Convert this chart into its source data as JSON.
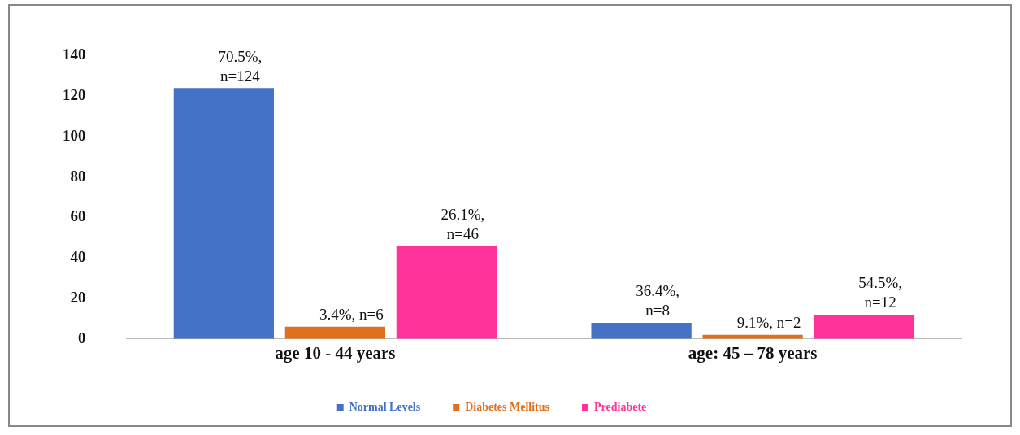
{
  "chart_data": {
    "type": "bar",
    "categories": [
      "age 10 - 44 years",
      "age: 45 – 78 years"
    ],
    "series": [
      {
        "name": "Normal Levels",
        "color": "#4472c4",
        "values": [
          124,
          8
        ],
        "value_labels": [
          "70.5%, n=124",
          "36.4%, n=8"
        ]
      },
      {
        "name": "Diabetes Mellitus",
        "color": "#e0701e",
        "values": [
          6,
          2
        ],
        "value_labels": [
          "3.4%, n=6",
          "9.1%, n=2"
        ]
      },
      {
        "name": "Prediabete",
        "color": "#ff3399",
        "values": [
          46,
          12
        ],
        "value_labels": [
          "26.1%, n=46",
          "54.5%, n=12"
        ]
      }
    ],
    "ylim": [
      0,
      140
    ],
    "yticks": [
      0,
      20,
      40,
      60,
      80,
      100,
      120,
      140
    ],
    "grid": false,
    "legend": "bottom"
  }
}
